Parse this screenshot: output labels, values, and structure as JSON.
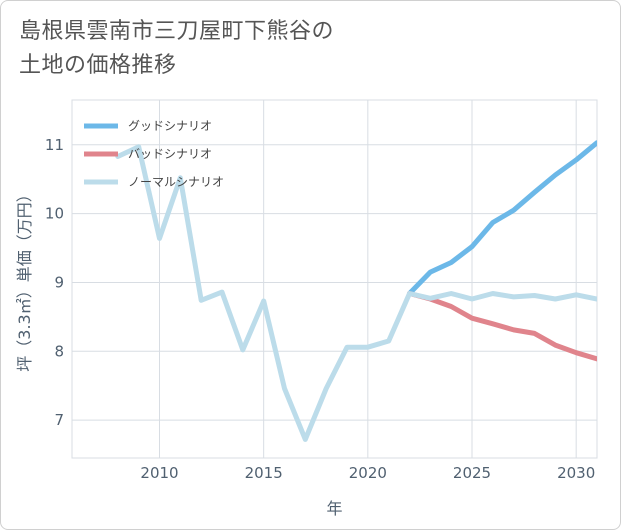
{
  "title": {
    "line1": "島根県雲南市三刀屋町下熊谷の",
    "line2": "土地の価格推移"
  },
  "chart_data": {
    "type": "line",
    "xlabel": "年",
    "ylabel": "坪（3.3㎡）単価（万円）",
    "xlim": [
      2005.8,
      2031
    ],
    "ylim": [
      6.45,
      11.65
    ],
    "x_ticks": [
      2010,
      2015,
      2020,
      2025,
      2030
    ],
    "y_ticks": [
      7,
      8,
      9,
      10,
      11
    ],
    "x_tick_labels": [
      "2010",
      "2015",
      "2020",
      "2025",
      "2030"
    ],
    "y_tick_labels": [
      "7",
      "8",
      "9",
      "10",
      "11"
    ],
    "legend_position": "top-left",
    "series": [
      {
        "name": "グッドシナリオ",
        "color": "#6cb8e8",
        "x": [
          2022,
          2023,
          2024,
          2025,
          2026,
          2027,
          2028,
          2029,
          2030,
          2031
        ],
        "values": [
          8.84,
          9.15,
          9.29,
          9.52,
          9.87,
          10.05,
          10.31,
          10.56,
          10.78,
          11.03
        ]
      },
      {
        "name": "バッドシナリオ",
        "color": "#e0848c",
        "x": [
          2022,
          2023,
          2024,
          2025,
          2026,
          2027,
          2028,
          2029,
          2030,
          2031
        ],
        "values": [
          8.84,
          8.76,
          8.65,
          8.48,
          8.4,
          8.31,
          8.26,
          8.09,
          7.98,
          7.89
        ]
      },
      {
        "name": "ノーマルシナリオ",
        "color": "#bcdcea",
        "x": [
          2008,
          2009,
          2010,
          2011,
          2012,
          2013,
          2014,
          2015,
          2016,
          2017,
          2018,
          2019,
          2020,
          2021,
          2022,
          2023,
          2024,
          2025,
          2026,
          2027,
          2028,
          2029,
          2030,
          2031
        ],
        "values": [
          10.83,
          10.97,
          9.64,
          10.52,
          8.74,
          8.86,
          8.02,
          8.73,
          7.46,
          6.72,
          7.46,
          8.06,
          8.06,
          8.15,
          8.84,
          8.77,
          8.84,
          8.76,
          8.84,
          8.79,
          8.81,
          8.76,
          8.82,
          8.76
        ]
      }
    ]
  }
}
